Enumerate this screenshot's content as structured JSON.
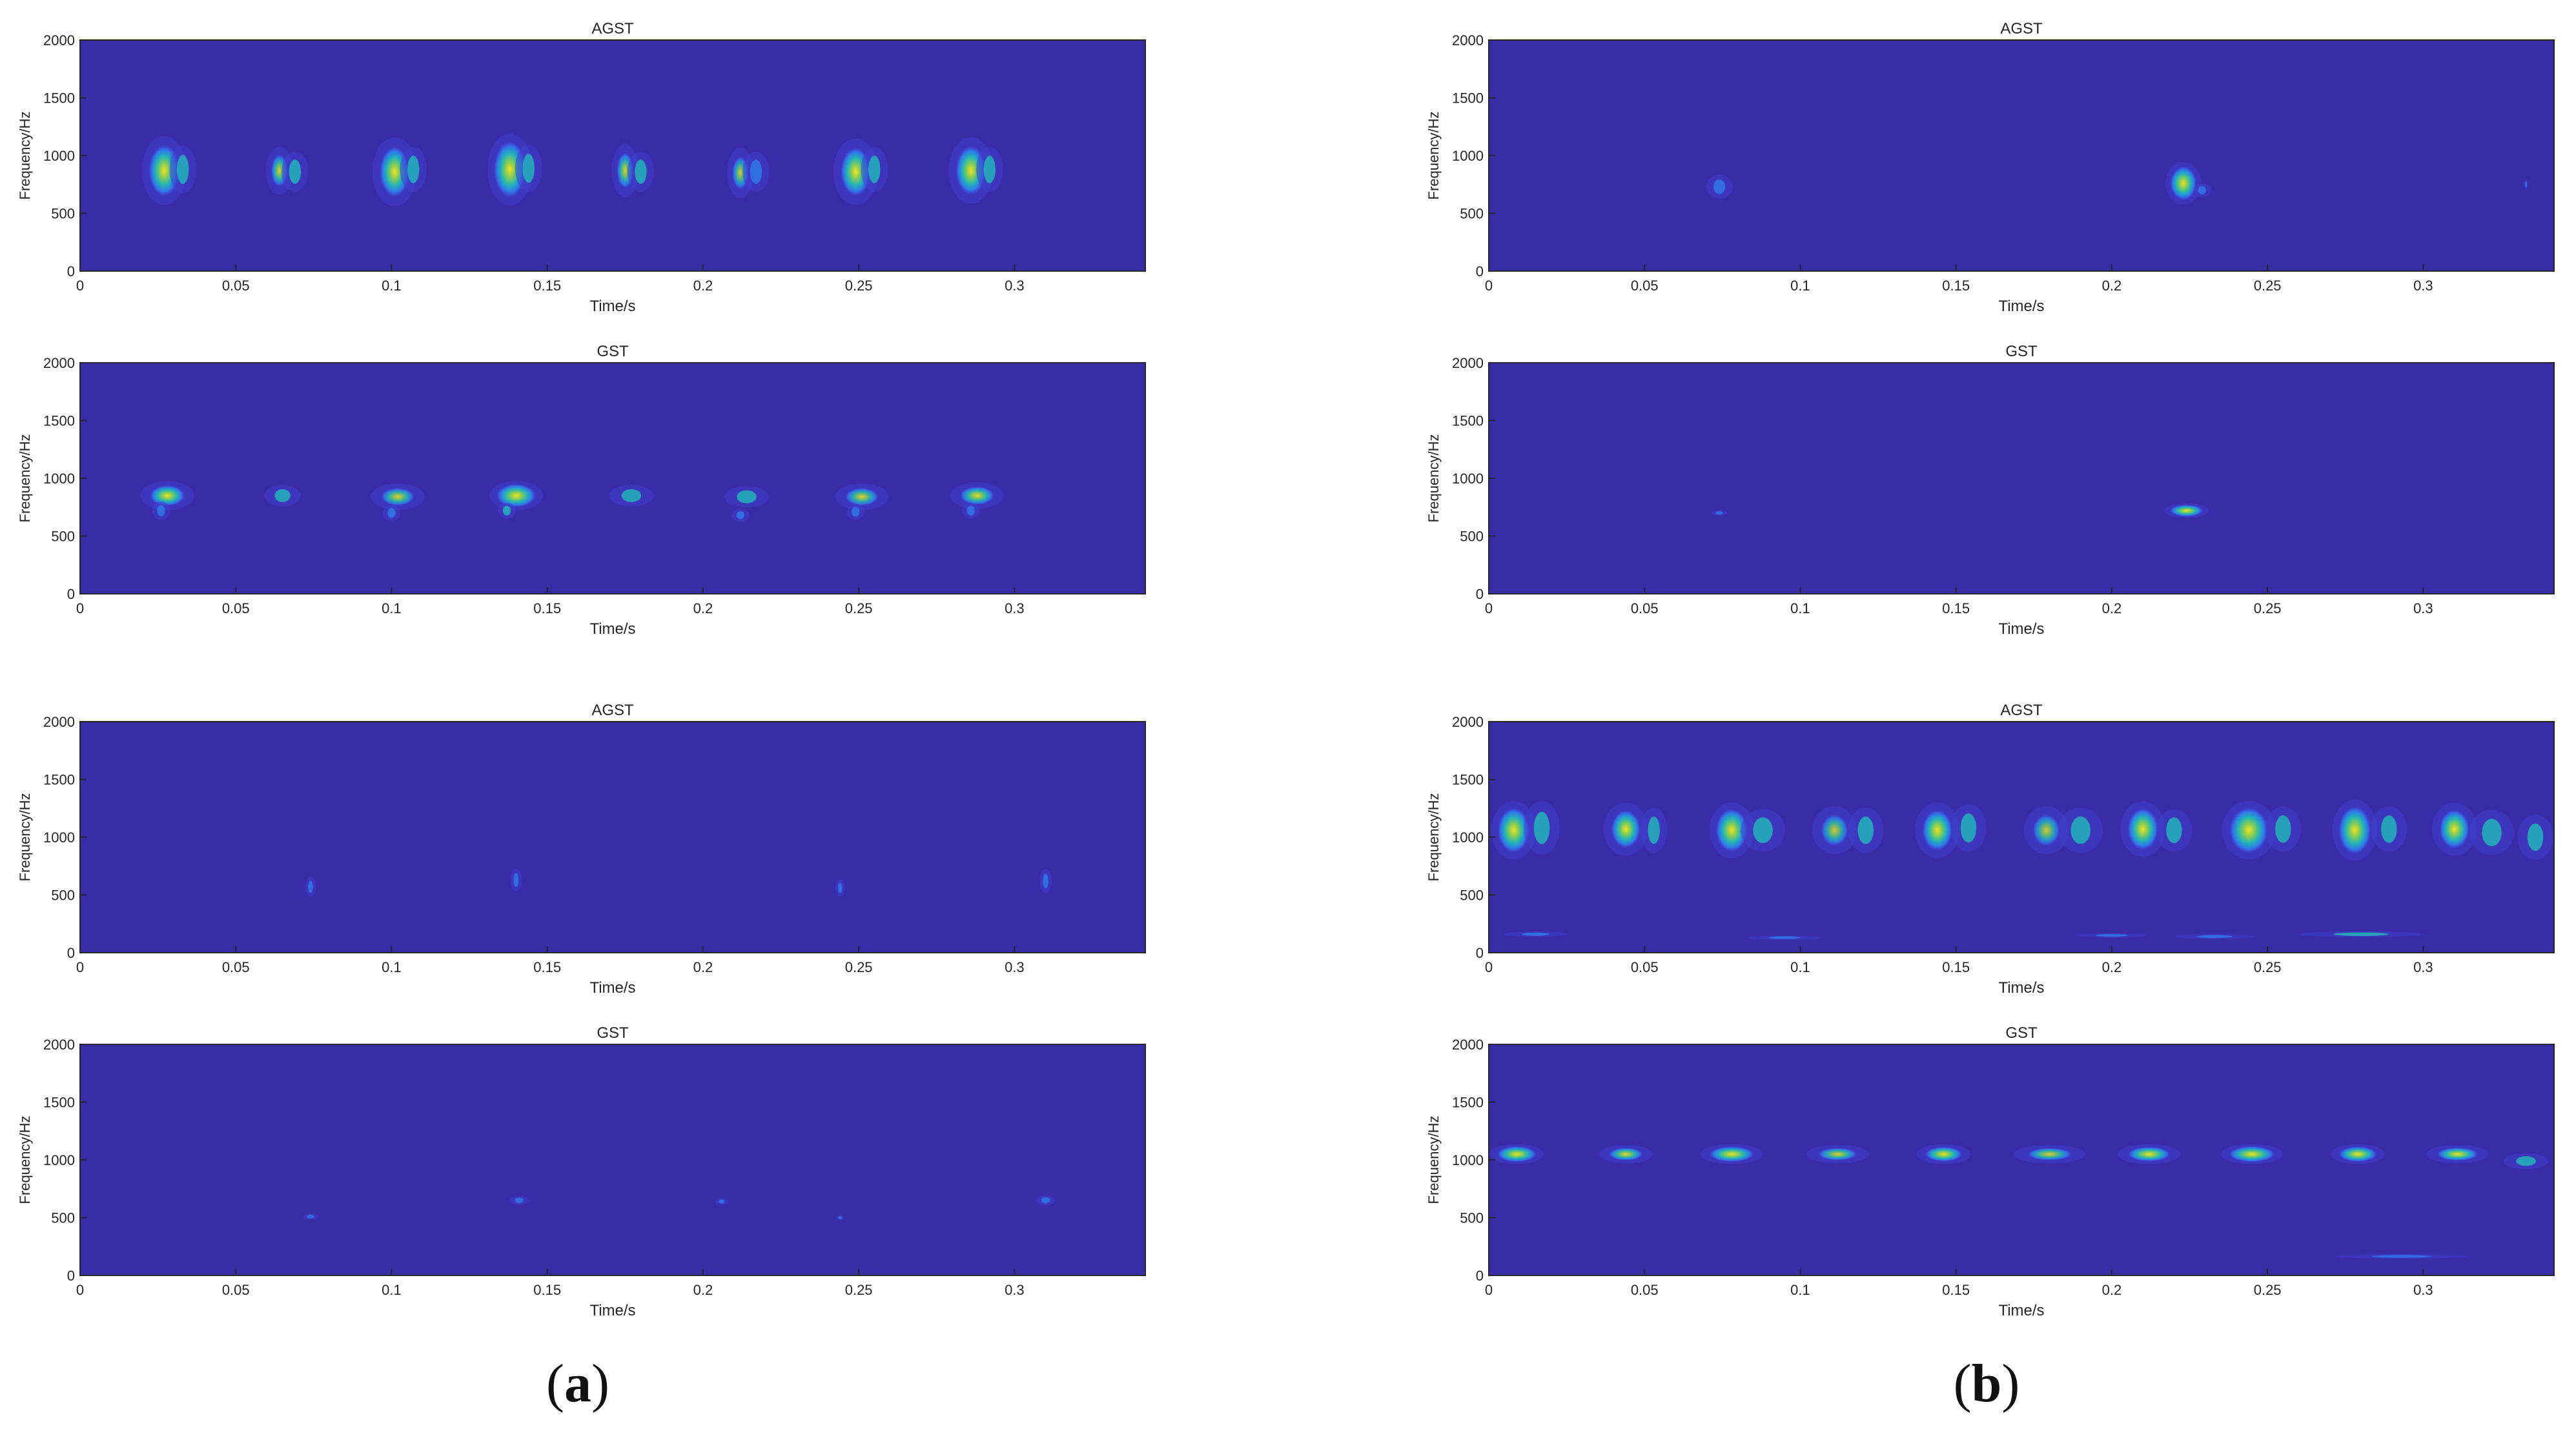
{
  "colors": {
    "background": "#3a2ba6",
    "axis": "#262626",
    "text": "#262626",
    "blob_low": "#3f3fcf",
    "blob_mid1": "#2f78e8",
    "blob_mid2": "#23b3b8",
    "blob_mid3": "#7ccb5d",
    "blob_peak": "#f3e21e"
  },
  "panel_labels": [
    {
      "open": "(",
      "letter": "a",
      "close": ")"
    },
    {
      "open": "(",
      "letter": "b",
      "close": ")"
    }
  ],
  "chart_data": [
    {
      "type": "heatmap",
      "group": "a",
      "title": "AGST",
      "xlabel": "Time/s",
      "ylabel": "Frequency/Hz",
      "xlim": [
        0,
        0.342
      ],
      "ylim": [
        0,
        2000
      ],
      "xticks": [
        "0",
        "0.05",
        "0.1",
        "0.15",
        "0.2",
        "0.25",
        "0.3"
      ],
      "yticks": [
        "0",
        "500",
        "1000",
        "1500",
        "2000"
      ],
      "energy_regions": [
        {
          "t": 0.027,
          "f": 870,
          "dt": 0.005,
          "df": 260,
          "peak": 0.75
        },
        {
          "t": 0.033,
          "f": 880,
          "dt": 0.003,
          "df": 180,
          "peak": 0.45
        },
        {
          "t": 0.064,
          "f": 870,
          "dt": 0.003,
          "df": 180,
          "peak": 0.55
        },
        {
          "t": 0.069,
          "f": 860,
          "dt": 0.003,
          "df": 150,
          "peak": 0.35
        },
        {
          "t": 0.101,
          "f": 860,
          "dt": 0.005,
          "df": 260,
          "peak": 0.7
        },
        {
          "t": 0.107,
          "f": 880,
          "dt": 0.003,
          "df": 170,
          "peak": 0.4
        },
        {
          "t": 0.138,
          "f": 880,
          "dt": 0.005,
          "df": 270,
          "peak": 0.85
        },
        {
          "t": 0.144,
          "f": 890,
          "dt": 0.003,
          "df": 180,
          "peak": 0.45
        },
        {
          "t": 0.175,
          "f": 870,
          "dt": 0.003,
          "df": 200,
          "peak": 0.55
        },
        {
          "t": 0.18,
          "f": 860,
          "dt": 0.003,
          "df": 150,
          "peak": 0.35
        },
        {
          "t": 0.212,
          "f": 850,
          "dt": 0.003,
          "df": 190,
          "peak": 0.5
        },
        {
          "t": 0.217,
          "f": 860,
          "dt": 0.003,
          "df": 150,
          "peak": 0.3
        },
        {
          "t": 0.249,
          "f": 860,
          "dt": 0.005,
          "df": 250,
          "peak": 0.7
        },
        {
          "t": 0.255,
          "f": 880,
          "dt": 0.003,
          "df": 170,
          "peak": 0.4
        },
        {
          "t": 0.286,
          "f": 870,
          "dt": 0.005,
          "df": 250,
          "peak": 0.72
        },
        {
          "t": 0.292,
          "f": 880,
          "dt": 0.003,
          "df": 170,
          "peak": 0.4
        }
      ]
    },
    {
      "type": "heatmap",
      "group": "a",
      "title": "GST",
      "xlabel": "Time/s",
      "ylabel": "Frequency/Hz",
      "xlim": [
        0,
        0.342
      ],
      "ylim": [
        0,
        2000
      ],
      "xticks": [
        "0",
        "0.05",
        "0.1",
        "0.15",
        "0.2",
        "0.25",
        "0.3"
      ],
      "yticks": [
        "0",
        "500",
        "1000",
        "1500",
        "2000"
      ],
      "energy_regions": [
        {
          "t": 0.028,
          "f": 850,
          "dt": 0.006,
          "df": 110,
          "peak": 0.65
        },
        {
          "t": 0.026,
          "f": 720,
          "dt": 0.002,
          "df": 70,
          "peak": 0.3
        },
        {
          "t": 0.065,
          "f": 850,
          "dt": 0.004,
          "df": 80,
          "peak": 0.35
        },
        {
          "t": 0.102,
          "f": 840,
          "dt": 0.006,
          "df": 100,
          "peak": 0.55
        },
        {
          "t": 0.1,
          "f": 700,
          "dt": 0.002,
          "df": 60,
          "peak": 0.3
        },
        {
          "t": 0.14,
          "f": 850,
          "dt": 0.006,
          "df": 110,
          "peak": 0.88
        },
        {
          "t": 0.137,
          "f": 720,
          "dt": 0.002,
          "df": 60,
          "peak": 0.35
        },
        {
          "t": 0.177,
          "f": 850,
          "dt": 0.005,
          "df": 80,
          "peak": 0.4
        },
        {
          "t": 0.214,
          "f": 840,
          "dt": 0.005,
          "df": 80,
          "peak": 0.35
        },
        {
          "t": 0.212,
          "f": 680,
          "dt": 0.002,
          "df": 50,
          "peak": 0.25
        },
        {
          "t": 0.251,
          "f": 840,
          "dt": 0.006,
          "df": 100,
          "peak": 0.55
        },
        {
          "t": 0.249,
          "f": 710,
          "dt": 0.002,
          "df": 60,
          "peak": 0.3
        },
        {
          "t": 0.288,
          "f": 850,
          "dt": 0.006,
          "df": 100,
          "peak": 0.6
        },
        {
          "t": 0.286,
          "f": 720,
          "dt": 0.002,
          "df": 60,
          "peak": 0.3
        }
      ]
    },
    {
      "type": "heatmap",
      "group": "a",
      "title": "AGST",
      "xlabel": "Time/s",
      "ylabel": "Frequency/Hz",
      "xlim": [
        0,
        0.342
      ],
      "ylim": [
        0,
        2000
      ],
      "xticks": [
        "0",
        "0.05",
        "0.1",
        "0.15",
        "0.2",
        "0.25",
        "0.3"
      ],
      "yticks": [
        "0",
        "500",
        "1000",
        "1500",
        "2000"
      ],
      "energy_regions": [
        {
          "t": 0.074,
          "f": 570,
          "dt": 0.0012,
          "df": 75,
          "peak": 0.28
        },
        {
          "t": 0.14,
          "f": 630,
          "dt": 0.0013,
          "df": 85,
          "peak": 0.28
        },
        {
          "t": 0.244,
          "f": 560,
          "dt": 0.0011,
          "df": 65,
          "peak": 0.25
        },
        {
          "t": 0.31,
          "f": 620,
          "dt": 0.0014,
          "df": 90,
          "peak": 0.3
        }
      ]
    },
    {
      "type": "heatmap",
      "group": "a",
      "title": "GST",
      "xlabel": "Time/s",
      "ylabel": "Frequency/Hz",
      "xlim": [
        0,
        0.342
      ],
      "ylim": [
        0,
        2000
      ],
      "xticks": [
        "0",
        "0.05",
        "0.1",
        "0.15",
        "0.2",
        "0.25",
        "0.3"
      ],
      "yticks": [
        "0",
        "500",
        "1000",
        "1500",
        "2000"
      ],
      "energy_regions": [
        {
          "t": 0.074,
          "f": 510,
          "dt": 0.0018,
          "df": 22,
          "peak": 0.2
        },
        {
          "t": 0.141,
          "f": 650,
          "dt": 0.0022,
          "df": 35,
          "peak": 0.26
        },
        {
          "t": 0.206,
          "f": 640,
          "dt": 0.0014,
          "df": 25,
          "peak": 0.2
        },
        {
          "t": 0.244,
          "f": 500,
          "dt": 0.001,
          "df": 18,
          "peak": 0.17
        },
        {
          "t": 0.31,
          "f": 650,
          "dt": 0.0022,
          "df": 38,
          "peak": 0.27
        }
      ]
    },
    {
      "type": "heatmap",
      "group": "b",
      "title": "AGST",
      "xlabel": "Time/s",
      "ylabel": "Frequency/Hz",
      "xlim": [
        0,
        0.342
      ],
      "ylim": [
        0,
        2000
      ],
      "xticks": [
        "0",
        "0.05",
        "0.1",
        "0.15",
        "0.2",
        "0.25",
        "0.3"
      ],
      "yticks": [
        "0",
        "500",
        "1000",
        "1500",
        "2000"
      ],
      "energy_regions": [
        {
          "t": 0.074,
          "f": 730,
          "dt": 0.003,
          "df": 90,
          "peak": 0.3
        },
        {
          "t": 0.223,
          "f": 760,
          "dt": 0.004,
          "df": 160,
          "peak": 0.88
        },
        {
          "t": 0.229,
          "f": 700,
          "dt": 0.002,
          "df": 50,
          "peak": 0.3
        },
        {
          "t": 0.333,
          "f": 750,
          "dt": 0.0005,
          "df": 35,
          "peak": 0.2
        }
      ]
    },
    {
      "type": "heatmap",
      "group": "b",
      "title": "GST",
      "xlabel": "Time/s",
      "ylabel": "Frequency/Hz",
      "xlim": [
        0,
        0.342
      ],
      "ylim": [
        0,
        2000
      ],
      "xticks": [
        "0",
        "0.05",
        "0.1",
        "0.15",
        "0.2",
        "0.25",
        "0.3"
      ],
      "yticks": [
        "0",
        "500",
        "1000",
        "1500",
        "2000"
      ],
      "energy_regions": [
        {
          "t": 0.074,
          "f": 700,
          "dt": 0.0018,
          "df": 20,
          "peak": 0.22
        },
        {
          "t": 0.224,
          "f": 720,
          "dt": 0.005,
          "df": 55,
          "peak": 0.9
        }
      ]
    },
    {
      "type": "heatmap",
      "group": "b",
      "title": "AGST",
      "xlabel": "Time/s",
      "ylabel": "Frequency/Hz",
      "xlim": [
        0,
        0.342
      ],
      "ylim": [
        0,
        2000
      ],
      "xticks": [
        "0",
        "0.05",
        "0.1",
        "0.15",
        "0.2",
        "0.25",
        "0.3"
      ],
      "yticks": [
        "0",
        "500",
        "1000",
        "1500",
        "2000"
      ],
      "energy_regions": [
        {
          "t": 0.008,
          "f": 1060,
          "dt": 0.005,
          "df": 220,
          "peak": 0.82
        },
        {
          "t": 0.017,
          "f": 1080,
          "dt": 0.004,
          "df": 200,
          "peak": 0.45
        },
        {
          "t": 0.044,
          "f": 1070,
          "dt": 0.005,
          "df": 200,
          "peak": 0.65
        },
        {
          "t": 0.053,
          "f": 1060,
          "dt": 0.003,
          "df": 170,
          "peak": 0.4
        },
        {
          "t": 0.078,
          "f": 1060,
          "dt": 0.005,
          "df": 210,
          "peak": 0.82
        },
        {
          "t": 0.088,
          "f": 1060,
          "dt": 0.005,
          "df": 160,
          "peak": 0.45
        },
        {
          "t": 0.111,
          "f": 1060,
          "dt": 0.005,
          "df": 180,
          "peak": 0.5
        },
        {
          "t": 0.121,
          "f": 1060,
          "dt": 0.004,
          "df": 170,
          "peak": 0.45
        },
        {
          "t": 0.144,
          "f": 1060,
          "dt": 0.005,
          "df": 210,
          "peak": 0.7
        },
        {
          "t": 0.154,
          "f": 1080,
          "dt": 0.004,
          "df": 180,
          "peak": 0.4
        },
        {
          "t": 0.179,
          "f": 1060,
          "dt": 0.005,
          "df": 180,
          "peak": 0.5
        },
        {
          "t": 0.19,
          "f": 1060,
          "dt": 0.005,
          "df": 170,
          "peak": 0.45
        },
        {
          "t": 0.21,
          "f": 1070,
          "dt": 0.005,
          "df": 210,
          "peak": 0.75
        },
        {
          "t": 0.22,
          "f": 1060,
          "dt": 0.004,
          "df": 160,
          "peak": 0.45
        },
        {
          "t": 0.244,
          "f": 1060,
          "dt": 0.006,
          "df": 220,
          "peak": 0.85
        },
        {
          "t": 0.255,
          "f": 1070,
          "dt": 0.004,
          "df": 170,
          "peak": 0.4
        },
        {
          "t": 0.278,
          "f": 1060,
          "dt": 0.005,
          "df": 230,
          "peak": 0.85
        },
        {
          "t": 0.289,
          "f": 1070,
          "dt": 0.004,
          "df": 170,
          "peak": 0.45
        },
        {
          "t": 0.31,
          "f": 1070,
          "dt": 0.005,
          "df": 200,
          "peak": 0.7
        },
        {
          "t": 0.322,
          "f": 1040,
          "dt": 0.005,
          "df": 170,
          "peak": 0.45
        },
        {
          "t": 0.336,
          "f": 1000,
          "dt": 0.004,
          "df": 170,
          "peak": 0.45
        },
        {
          "t": 0.015,
          "f": 160,
          "dt": 0.007,
          "df": 20,
          "peak": 0.3
        },
        {
          "t": 0.095,
          "f": 130,
          "dt": 0.008,
          "df": 15,
          "peak": 0.25
        },
        {
          "t": 0.2,
          "f": 150,
          "dt": 0.008,
          "df": 15,
          "peak": 0.25
        },
        {
          "t": 0.233,
          "f": 140,
          "dt": 0.009,
          "df": 18,
          "peak": 0.25
        },
        {
          "t": 0.28,
          "f": 160,
          "dt": 0.014,
          "df": 22,
          "peak": 0.45
        }
      ]
    },
    {
      "type": "heatmap",
      "group": "b",
      "title": "GST",
      "xlabel": "Time/s",
      "ylabel": "Frequency/Hz",
      "xlim": [
        0,
        0.342
      ],
      "ylim": [
        0,
        2000
      ],
      "xticks": [
        "0",
        "0.05",
        "0.1",
        "0.15",
        "0.2",
        "0.25",
        "0.3"
      ],
      "yticks": [
        "0",
        "500",
        "1000",
        "1500",
        "2000"
      ],
      "energy_regions": [
        {
          "t": 0.009,
          "f": 1050,
          "dt": 0.006,
          "df": 75,
          "peak": 0.88
        },
        {
          "t": 0.044,
          "f": 1050,
          "dt": 0.006,
          "df": 70,
          "peak": 0.6
        },
        {
          "t": 0.078,
          "f": 1050,
          "dt": 0.007,
          "df": 75,
          "peak": 0.82
        },
        {
          "t": 0.112,
          "f": 1050,
          "dt": 0.007,
          "df": 70,
          "peak": 0.55
        },
        {
          "t": 0.146,
          "f": 1050,
          "dt": 0.006,
          "df": 75,
          "peak": 0.75
        },
        {
          "t": 0.18,
          "f": 1050,
          "dt": 0.008,
          "df": 70,
          "peak": 0.55
        },
        {
          "t": 0.212,
          "f": 1050,
          "dt": 0.007,
          "df": 75,
          "peak": 0.72
        },
        {
          "t": 0.245,
          "f": 1050,
          "dt": 0.007,
          "df": 75,
          "peak": 0.88
        },
        {
          "t": 0.279,
          "f": 1050,
          "dt": 0.006,
          "df": 75,
          "peak": 0.82
        },
        {
          "t": 0.311,
          "f": 1050,
          "dt": 0.007,
          "df": 70,
          "peak": 0.65
        },
        {
          "t": 0.333,
          "f": 990,
          "dt": 0.005,
          "df": 60,
          "peak": 0.4
        },
        {
          "t": 0.293,
          "f": 165,
          "dt": 0.015,
          "df": 12,
          "peak": 0.3
        }
      ]
    }
  ]
}
